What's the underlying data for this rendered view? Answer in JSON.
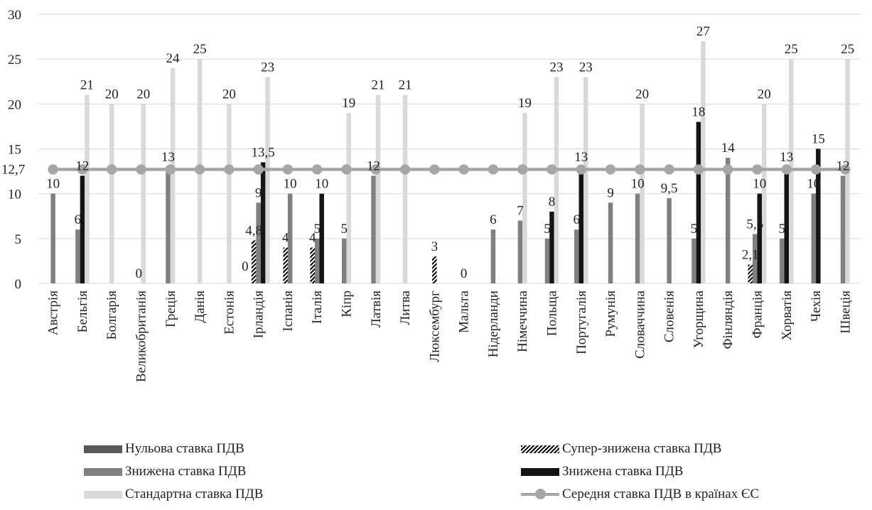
{
  "chart_data": {
    "type": "bar",
    "ylim": [
      0,
      30
    ],
    "yticks": [
      0,
      5,
      10,
      15,
      20,
      25,
      30
    ],
    "grid": true,
    "legend_position": "bottom",
    "categories": [
      "Австрія",
      "Бельгія",
      "Болгарія",
      "Великобританія",
      "Греція",
      "Данія",
      "Естонія",
      "Ірландія",
      "Іспанія",
      "Італія",
      "Кіпр",
      "Латвія",
      "Литва",
      "Люксембург",
      "Мальта",
      "Нідерланди",
      "Німеччина",
      "Польща",
      "Португалія",
      "Румунія",
      "Словаччина",
      "Словенія",
      "Угорщина",
      "Фінляндія",
      "Франція",
      "Хорватія",
      "Чехія",
      "Швеція"
    ],
    "series": [
      {
        "name": "Нульова ставка ПДВ",
        "style": "solid",
        "color": "#595959",
        "values": [
          null,
          null,
          null,
          0,
          null,
          null,
          null,
          0,
          null,
          null,
          null,
          null,
          null,
          null,
          0,
          null,
          null,
          null,
          null,
          null,
          null,
          null,
          null,
          null,
          null,
          null,
          null,
          null
        ]
      },
      {
        "name": "Супер-знижена ставка ПДВ",
        "style": "hatch",
        "color": "#000000",
        "values": [
          null,
          null,
          null,
          null,
          null,
          null,
          null,
          4.8,
          4,
          4,
          null,
          null,
          null,
          3,
          null,
          null,
          null,
          null,
          null,
          null,
          null,
          null,
          null,
          null,
          2.1,
          null,
          null,
          null
        ]
      },
      {
        "name": "Знижена ставка ПДВ",
        "style": "solid",
        "color": "#808080",
        "values": [
          10,
          6,
          null,
          null,
          13,
          null,
          null,
          9,
          10,
          5,
          5,
          12,
          null,
          null,
          null,
          6,
          7,
          5,
          6,
          9,
          10,
          9.5,
          5,
          14,
          5.5,
          5,
          10,
          12
        ]
      },
      {
        "name": "Знижена ставка ПДВ",
        "style": "solid",
        "color": "#141414",
        "values": [
          null,
          12,
          null,
          null,
          null,
          null,
          null,
          13.5,
          null,
          10,
          null,
          null,
          null,
          null,
          null,
          null,
          null,
          8,
          13,
          null,
          null,
          null,
          18,
          null,
          10,
          13,
          15,
          null
        ]
      },
      {
        "name": "Стандартна ставка ПДВ",
        "style": "solid",
        "color": "#d9d9d9",
        "values": [
          null,
          21,
          20,
          20,
          24,
          25,
          20,
          23,
          null,
          null,
          19,
          21,
          21,
          null,
          null,
          null,
          19,
          23,
          23,
          null,
          20,
          null,
          27,
          null,
          20,
          25,
          null,
          25
        ]
      }
    ],
    "line": {
      "name": "Середня ставка ПДВ  в країнах ЄС",
      "value": 12.7,
      "label": "12,7",
      "color": "#a6a6a6"
    },
    "label_overrides": {
      "3-0": "0",
      "7-0": "0",
      "14-0": "0",
      "7-1": "4,8",
      "24-1": "2,1",
      "7-3": "13,5",
      "21-2": "9,5",
      "24-2": "5,5"
    }
  },
  "legend": {
    "items": [
      {
        "label": "Нульова ставка ПДВ"
      },
      {
        "label": "Супер-знижена ставка ПДВ"
      },
      {
        "label": "Знижена ставка ПДВ"
      },
      {
        "label": "Знижена ставка ПДВ"
      },
      {
        "label": "Стандартна ставка ПДВ"
      },
      {
        "label": "Середня ставка ПДВ  в країнах ЄС"
      }
    ]
  }
}
